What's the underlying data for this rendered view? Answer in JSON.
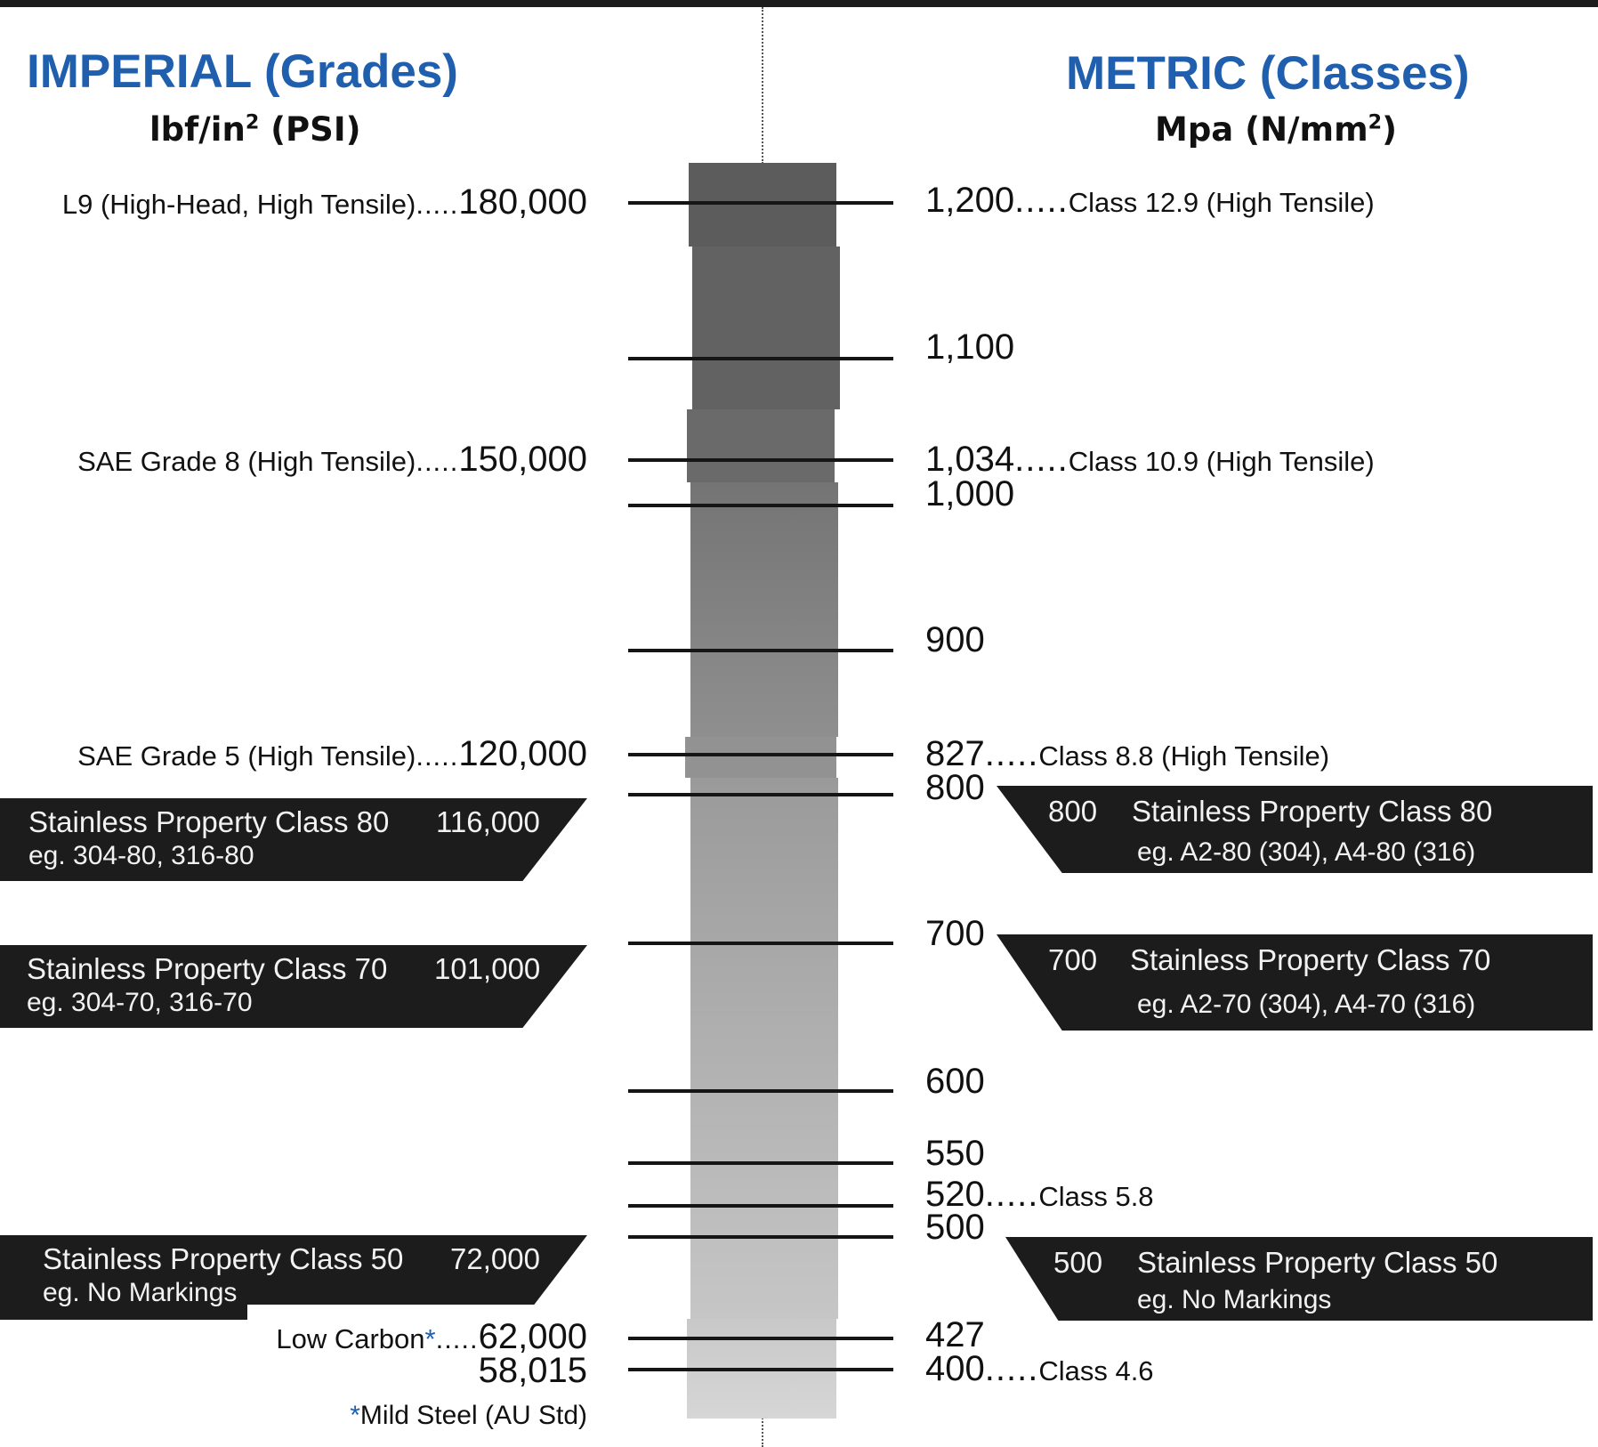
{
  "colors": {
    "heading_blue": "#1f5fae",
    "panel_black": "#1c1c1c",
    "bar_top": "#5a5a5a",
    "bar_bottom": "#d4d4d4"
  },
  "imperial": {
    "title": "IMPERIAL (Grades)",
    "units_main": "lbf/in",
    "units_sup": "2",
    "units_tail": " (PSI)"
  },
  "metric": {
    "title": "METRIC (Classes)",
    "units_main": "Mpa (N/mm",
    "units_sup": "2",
    "units_tail": ")"
  },
  "left_rows": [
    {
      "label": "L9 (High-Head, High Tensile)",
      "sep": ".....",
      "value": "180,000"
    },
    {
      "label": "SAE Grade 8 (High Tensile)",
      "sep": ".....",
      "value": "150,000"
    },
    {
      "label": "SAE Grade 5 (High Tensile)",
      "sep": ".....",
      "value": "120,000"
    }
  ],
  "low_carbon": {
    "label": "Low Carbon",
    "star": "*",
    "sep": ".....",
    "value": "62,000"
  },
  "extra_value": "58,015",
  "footnote": {
    "star": "*",
    "text": "Mild Steel (AU Std)"
  },
  "right_scale": [
    {
      "value": "1,200",
      "sep": ".....",
      "label": "Class 12.9 (High Tensile)"
    },
    {
      "value": "1,100",
      "sep": "",
      "label": ""
    },
    {
      "value": "1,034",
      "sep": ".....",
      "label": "Class 10.9 (High Tensile)"
    },
    {
      "value": "1,000",
      "sep": "",
      "label": ""
    },
    {
      "value": "900",
      "sep": "",
      "label": ""
    },
    {
      "value": "827",
      "sep": ".....",
      "label": " Class 8.8 (High Tensile)"
    },
    {
      "value": "800",
      "sep": "",
      "label": ""
    },
    {
      "value": "700",
      "sep": "",
      "label": ""
    },
    {
      "value": "600",
      "sep": "",
      "label": ""
    },
    {
      "value": "550",
      "sep": "",
      "label": ""
    },
    {
      "value": "520",
      "sep": ".....",
      "label": "Class 5.8"
    },
    {
      "value": "500",
      "sep": "",
      "label": ""
    },
    {
      "value": "427",
      "sep": "",
      "label": ""
    },
    {
      "value": "400",
      "sep": ".....",
      "label": "Class 4.6"
    }
  ],
  "left_panels": [
    {
      "title": "Stainless Property Class 80",
      "value": "116,000",
      "example": "eg. 304-80, 316-80"
    },
    {
      "title": "Stainless Property Class 70",
      "value": "101,000",
      "example": "eg. 304-70, 316-70"
    },
    {
      "title": "Stainless Property Class 50",
      "value": "72,000",
      "example": "eg. No Markings"
    }
  ],
  "right_panels": [
    {
      "value": "800",
      "title": "Stainless Property Class 80",
      "example": "eg. A2-80 (304), A4-80 (316)"
    },
    {
      "value": "700",
      "title": "Stainless Property Class 70",
      "example": "eg. A2-70 (304), A4-70 (316)"
    },
    {
      "value": "500",
      "title": "Stainless Property Class 50",
      "example": "eg. No Markings"
    }
  ]
}
